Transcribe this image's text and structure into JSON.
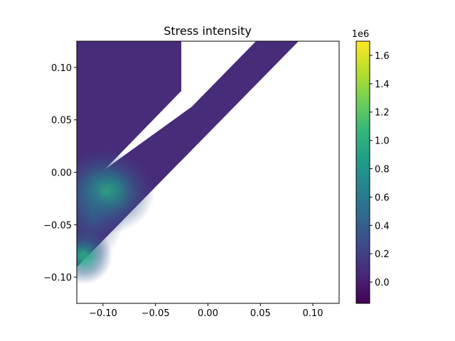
{
  "chart_data": {
    "type": "heatmap",
    "title": "Stress intensity",
    "xlabel": "",
    "ylabel": "",
    "xlim": [
      -0.125,
      0.125
    ],
    "ylim": [
      -0.125,
      0.125
    ],
    "x_ticks": [
      -0.1,
      -0.05,
      0.0,
      0.05,
      0.1
    ],
    "x_tick_labels": [
      "−0.10",
      "−0.05",
      "0.00",
      "0.05",
      "0.10"
    ],
    "y_ticks": [
      0.1,
      0.05,
      0.0,
      -0.05,
      -0.1
    ],
    "y_tick_labels": [
      "0.10",
      "0.05",
      "0.00",
      "−0.05",
      "−0.10"
    ],
    "colorbar": {
      "label_multiplier": "1e6",
      "range": [
        -0.15,
        1.7
      ],
      "ticks": [
        0.0,
        0.2,
        0.4,
        0.6,
        0.8,
        1.0,
        1.2,
        1.4,
        1.6
      ],
      "tick_labels": [
        "0.0",
        "0.2",
        "0.4",
        "0.6",
        "0.8",
        "1.0",
        "1.2",
        "1.4",
        "1.6"
      ],
      "colormap": "viridis",
      "levels": 30
    },
    "hotspots": [
      {
        "x": -0.098,
        "y": -0.02,
        "value": 0.9
      },
      {
        "x": -0.118,
        "y": -0.08,
        "value": 0.85
      }
    ],
    "background_value": 0.0,
    "grid": false
  },
  "colors": {
    "viridis": [
      "#440154",
      "#482878",
      "#3e4989",
      "#31688e",
      "#26828e",
      "#1f9e89",
      "#35b779",
      "#6ece58",
      "#b5de2b",
      "#fde725"
    ],
    "background_fill": "#472c7a",
    "axes_edge": "#000000"
  }
}
